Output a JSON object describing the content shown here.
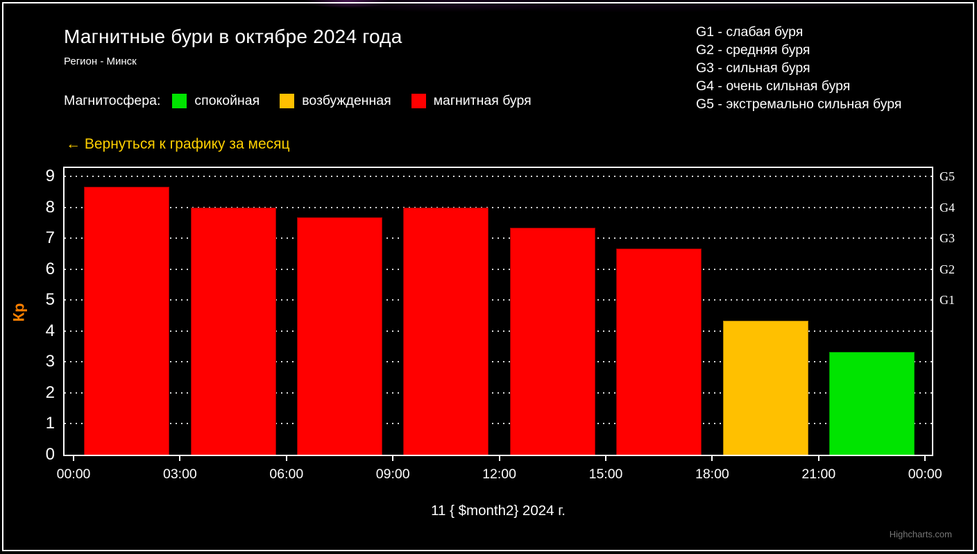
{
  "header": {
    "title": "Магнитные бури в октябре 2024 года",
    "subtitle": "Регион - Минск",
    "back_link": "← Вернуться к графику за месяц"
  },
  "legend": {
    "label": "Магнитосфера:",
    "items": [
      {
        "label": "спокойная",
        "color": "#00E400"
      },
      {
        "label": "возбужденная",
        "color": "#FFC000"
      },
      {
        "label": "магнитная буря",
        "color": "#FF0000"
      }
    ]
  },
  "storm_scale": {
    "items": [
      "G1 - слабая буря",
      "G2 - средняя буря",
      "G3 - сильная буря",
      "G4 - очень сильная буря",
      "G5 - экстремально сильная буря"
    ]
  },
  "chart_data": {
    "type": "bar",
    "title": "Магнитные бури в октябре 2024 года",
    "subtitle": "Регион - Минск",
    "xlabel": "11 { $month2} 2024 г.",
    "ylabel": "Кр",
    "ylabel_color": "#FF8000",
    "ylim": [
      0,
      9.27
    ],
    "yticks": [
      0,
      1,
      2,
      3,
      4,
      5,
      6,
      7,
      8,
      9
    ],
    "grid": "dotted-horizontal",
    "x_tick_labels": [
      "00:00",
      "03:00",
      "06:00",
      "09:00",
      "12:00",
      "15:00",
      "18:00",
      "21:00",
      "00:00"
    ],
    "right_axis_labels": [
      {
        "label": "G5",
        "value": 9
      },
      {
        "label": "G4",
        "value": 8
      },
      {
        "label": "G3",
        "value": 7
      },
      {
        "label": "G2",
        "value": 6
      },
      {
        "label": "G1",
        "value": 5
      }
    ],
    "bars": [
      {
        "interval": "00:00–03:00",
        "value": 8.67,
        "state": "магнитная буря",
        "color": "#FF0000",
        "border": "#990000"
      },
      {
        "interval": "03:00–06:00",
        "value": 8.0,
        "state": "магнитная буря",
        "color": "#FF0000",
        "border": "#990000"
      },
      {
        "interval": "06:00–09:00",
        "value": 7.67,
        "state": "магнитная буря",
        "color": "#FF0000",
        "border": "#990000"
      },
      {
        "interval": "09:00–12:00",
        "value": 8.0,
        "state": "магнитная буря",
        "color": "#FF0000",
        "border": "#990000"
      },
      {
        "interval": "12:00–15:00",
        "value": 7.33,
        "state": "магнитная буря",
        "color": "#FF0000",
        "border": "#990000"
      },
      {
        "interval": "15:00–18:00",
        "value": 6.67,
        "state": "магнитная буря",
        "color": "#FF0000",
        "border": "#990000"
      },
      {
        "interval": "18:00–21:00",
        "value": 4.33,
        "state": "возбужденная",
        "color": "#FFC000",
        "border": "#B78500"
      },
      {
        "interval": "21:00–00:00",
        "value": 3.33,
        "state": "спокойная",
        "color": "#00E400",
        "border": "#00A000"
      }
    ]
  },
  "credits": "Highcharts.com"
}
